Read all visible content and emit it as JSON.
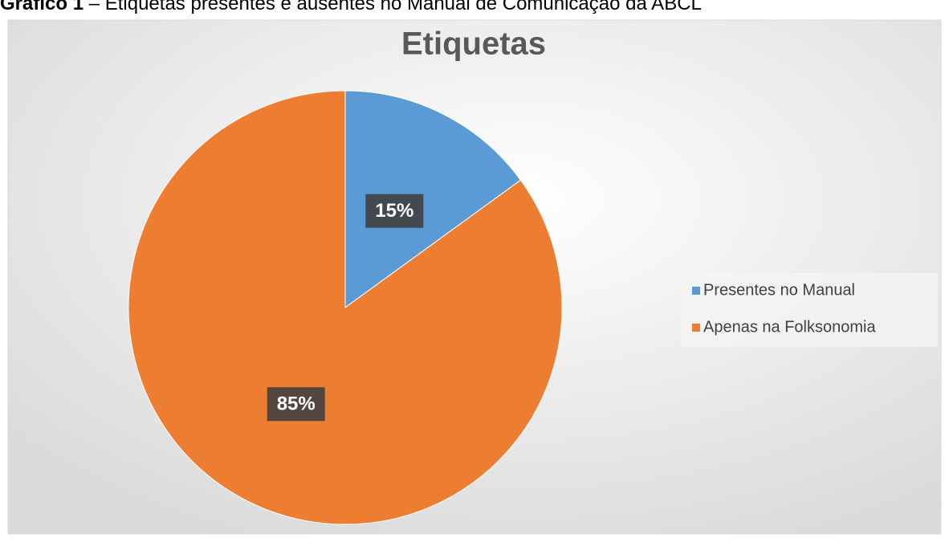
{
  "caption": {
    "label": "Gráfico 1",
    "text": " – Etiquetas presentes e ausentes no Manual de Comunicação da ABCL"
  },
  "chart_data": {
    "type": "pie",
    "title": "Etiquetas",
    "categories": [
      "Presentes no Manual",
      "Apenas na Folksonomia"
    ],
    "values": [
      15,
      85
    ],
    "value_labels": [
      "15%",
      "85%"
    ],
    "colors": [
      "#5b9bd5",
      "#ed7d31"
    ],
    "legend": "right"
  }
}
